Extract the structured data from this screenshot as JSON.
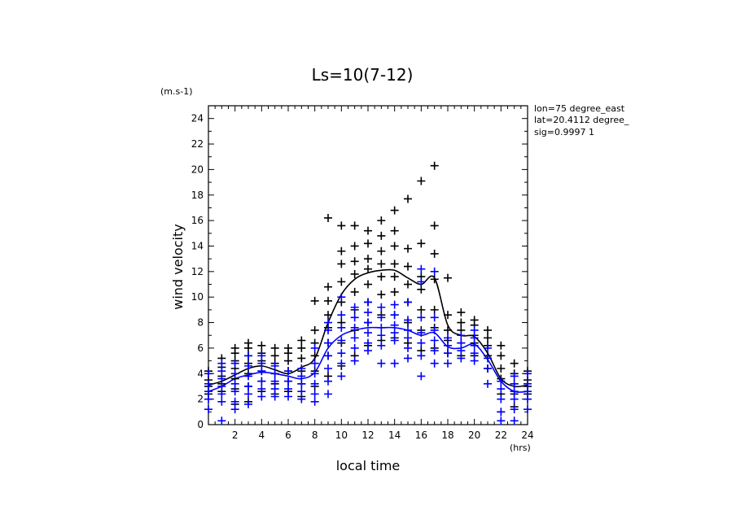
{
  "chart_data": {
    "type": "scatter",
    "title": "Ls=10(7-12)",
    "xlabel": "local time",
    "ylabel": "wind velocity",
    "x_unit": "(hrs)",
    "y_unit": "(m.s-1)",
    "xlim": [
      0,
      24
    ],
    "ylim": [
      0,
      25
    ],
    "x_ticks": [
      2,
      4,
      6,
      8,
      10,
      12,
      14,
      16,
      18,
      20,
      22,
      24
    ],
    "y_ticks": [
      0,
      2,
      4,
      6,
      8,
      10,
      12,
      14,
      16,
      18,
      20,
      22,
      24
    ],
    "grid": false,
    "annotations": [
      "lon=75 degree_east",
      "lat=20.4112 degree_",
      "sig=0.9997 1"
    ],
    "series": [
      {
        "color": "#000000",
        "marker": "+",
        "points": [
          [
            0,
            2.4
          ],
          [
            0,
            3.0
          ],
          [
            0,
            3.5
          ],
          [
            0,
            4.2
          ],
          [
            1,
            2.6
          ],
          [
            1,
            3.2
          ],
          [
            1,
            3.8
          ],
          [
            1,
            4.5
          ],
          [
            1,
            5.2
          ],
          [
            2,
            1.6
          ],
          [
            2,
            2.8
          ],
          [
            2,
            3.6
          ],
          [
            2,
            4.4
          ],
          [
            2,
            5.0
          ],
          [
            2,
            5.6
          ],
          [
            2,
            6.0
          ],
          [
            3,
            1.8
          ],
          [
            3,
            3.0
          ],
          [
            3,
            4.0
          ],
          [
            3,
            4.8
          ],
          [
            3,
            5.4
          ],
          [
            3,
            6.0
          ],
          [
            3,
            6.4
          ],
          [
            4,
            2.6
          ],
          [
            4,
            3.4
          ],
          [
            4,
            4.2
          ],
          [
            4,
            5.0
          ],
          [
            4,
            5.6
          ],
          [
            4,
            6.2
          ],
          [
            5,
            2.4
          ],
          [
            5,
            3.2
          ],
          [
            5,
            4.0
          ],
          [
            5,
            4.8
          ],
          [
            5,
            5.4
          ],
          [
            5,
            6.0
          ],
          [
            6,
            2.6
          ],
          [
            6,
            3.4
          ],
          [
            6,
            4.2
          ],
          [
            6,
            5.0
          ],
          [
            6,
            5.6
          ],
          [
            6,
            6.0
          ],
          [
            7,
            2.2
          ],
          [
            7,
            3.2
          ],
          [
            7,
            4.2
          ],
          [
            7,
            5.2
          ],
          [
            7,
            6.0
          ],
          [
            7,
            6.6
          ],
          [
            8,
            3.0
          ],
          [
            8,
            4.2
          ],
          [
            8,
            5.4
          ],
          [
            8,
            6.4
          ],
          [
            8,
            7.4
          ],
          [
            8,
            9.7
          ],
          [
            9,
            3.8
          ],
          [
            9,
            5.4
          ],
          [
            9,
            6.4
          ],
          [
            9,
            7.6
          ],
          [
            9,
            8.6
          ],
          [
            9,
            9.7
          ],
          [
            9,
            10.8
          ],
          [
            9,
            16.2
          ],
          [
            10,
            4.6
          ],
          [
            10,
            6.4
          ],
          [
            10,
            8.0
          ],
          [
            10,
            9.6
          ],
          [
            10,
            11.2
          ],
          [
            10,
            12.6
          ],
          [
            10,
            13.6
          ],
          [
            10,
            15.6
          ],
          [
            11,
            5.4
          ],
          [
            11,
            7.4
          ],
          [
            11,
            9.0
          ],
          [
            11,
            10.4
          ],
          [
            11,
            11.8
          ],
          [
            11,
            12.8
          ],
          [
            11,
            14.0
          ],
          [
            11,
            15.6
          ],
          [
            12,
            6.2
          ],
          [
            12,
            8.0
          ],
          [
            12,
            9.6
          ],
          [
            12,
            11.0
          ],
          [
            12,
            12.2
          ],
          [
            12,
            13.0
          ],
          [
            12,
            14.2
          ],
          [
            12,
            15.2
          ],
          [
            13,
            6.6
          ],
          [
            13,
            8.6
          ],
          [
            13,
            10.2
          ],
          [
            13,
            11.6
          ],
          [
            13,
            12.6
          ],
          [
            13,
            13.6
          ],
          [
            13,
            14.8
          ],
          [
            13,
            16.0
          ],
          [
            14,
            6.8
          ],
          [
            14,
            8.6
          ],
          [
            14,
            10.4
          ],
          [
            14,
            11.6
          ],
          [
            14,
            12.6
          ],
          [
            14,
            14.0
          ],
          [
            14,
            15.2
          ],
          [
            14,
            16.8
          ],
          [
            15,
            6.4
          ],
          [
            15,
            8.0
          ],
          [
            15,
            9.6
          ],
          [
            15,
            11.0
          ],
          [
            15,
            12.4
          ],
          [
            15,
            13.8
          ],
          [
            15,
            17.7
          ],
          [
            16,
            5.8
          ],
          [
            16,
            7.4
          ],
          [
            16,
            9.0
          ],
          [
            16,
            10.6
          ],
          [
            16,
            11.6
          ],
          [
            16,
            14.2
          ],
          [
            16,
            19.1
          ],
          [
            17,
            6.0
          ],
          [
            17,
            7.6
          ],
          [
            17,
            9.0
          ],
          [
            17,
            11.4
          ],
          [
            17,
            13.4
          ],
          [
            17,
            15.6
          ],
          [
            17,
            20.3
          ],
          [
            18,
            5.6
          ],
          [
            18,
            6.6
          ],
          [
            18,
            7.4
          ],
          [
            18,
            8.6
          ],
          [
            18,
            11.5
          ],
          [
            19,
            5.4
          ],
          [
            19,
            6.4
          ],
          [
            19,
            7.4
          ],
          [
            19,
            8.0
          ],
          [
            19,
            8.8
          ],
          [
            20,
            5.4
          ],
          [
            20,
            6.4
          ],
          [
            20,
            7.0
          ],
          [
            20,
            7.8
          ],
          [
            20,
            8.2
          ],
          [
            21,
            4.4
          ],
          [
            21,
            5.4
          ],
          [
            21,
            6.2
          ],
          [
            21,
            6.8
          ],
          [
            21,
            7.4
          ],
          [
            22,
            1.0
          ],
          [
            22,
            2.4
          ],
          [
            22,
            3.6
          ],
          [
            22,
            4.4
          ],
          [
            22,
            5.4
          ],
          [
            22,
            6.2
          ],
          [
            23,
            1.4
          ],
          [
            23,
            2.4
          ],
          [
            23,
            3.2
          ],
          [
            23,
            4.0
          ],
          [
            23,
            4.8
          ],
          [
            24,
            2.4
          ],
          [
            24,
            3.0
          ],
          [
            24,
            3.5
          ],
          [
            24,
            4.2
          ]
        ]
      },
      {
        "color": "#0000ff",
        "marker": "+",
        "points": [
          [
            0,
            1.2
          ],
          [
            0,
            2.0
          ],
          [
            0,
            2.6
          ],
          [
            0,
            3.2
          ],
          [
            0,
            4.0
          ],
          [
            1,
            0.3
          ],
          [
            1,
            1.8
          ],
          [
            1,
            2.4
          ],
          [
            1,
            3.0
          ],
          [
            1,
            3.6
          ],
          [
            1,
            4.2
          ],
          [
            1,
            4.8
          ],
          [
            2,
            1.2
          ],
          [
            2,
            1.8
          ],
          [
            2,
            2.6
          ],
          [
            2,
            3.2
          ],
          [
            2,
            4.0
          ],
          [
            2,
            4.8
          ],
          [
            3,
            1.6
          ],
          [
            3,
            2.4
          ],
          [
            3,
            3.0
          ],
          [
            3,
            3.8
          ],
          [
            3,
            4.6
          ],
          [
            3,
            5.4
          ],
          [
            4,
            2.2
          ],
          [
            4,
            2.8
          ],
          [
            4,
            3.4
          ],
          [
            4,
            4.2
          ],
          [
            4,
            4.8
          ],
          [
            4,
            5.4
          ],
          [
            5,
            2.2
          ],
          [
            5,
            2.8
          ],
          [
            5,
            3.4
          ],
          [
            5,
            4.0
          ],
          [
            5,
            4.6
          ],
          [
            6,
            2.2
          ],
          [
            6,
            2.8
          ],
          [
            6,
            3.4
          ],
          [
            6,
            4.2
          ],
          [
            7,
            2.0
          ],
          [
            7,
            2.6
          ],
          [
            7,
            3.2
          ],
          [
            7,
            3.8
          ],
          [
            7,
            4.4
          ],
          [
            8,
            1.8
          ],
          [
            8,
            2.4
          ],
          [
            8,
            3.2
          ],
          [
            8,
            4.0
          ],
          [
            8,
            4.8
          ],
          [
            8,
            6.0
          ],
          [
            9,
            2.4
          ],
          [
            9,
            3.4
          ],
          [
            9,
            4.4
          ],
          [
            9,
            5.4
          ],
          [
            9,
            6.4
          ],
          [
            9,
            7.4
          ],
          [
            9,
            8.0
          ],
          [
            10,
            3.8
          ],
          [
            10,
            4.8
          ],
          [
            10,
            5.6
          ],
          [
            10,
            6.6
          ],
          [
            10,
            7.6
          ],
          [
            10,
            8.6
          ],
          [
            10,
            10.0
          ],
          [
            11,
            5.0
          ],
          [
            11,
            6.0
          ],
          [
            11,
            6.8
          ],
          [
            11,
            7.6
          ],
          [
            11,
            8.4
          ],
          [
            11,
            9.2
          ],
          [
            12,
            5.8
          ],
          [
            12,
            6.4
          ],
          [
            12,
            7.2
          ],
          [
            12,
            8.0
          ],
          [
            12,
            8.8
          ],
          [
            12,
            9.6
          ],
          [
            13,
            4.8
          ],
          [
            13,
            6.2
          ],
          [
            13,
            7.0
          ],
          [
            13,
            7.6
          ],
          [
            13,
            8.4
          ],
          [
            13,
            9.2
          ],
          [
            14,
            4.8
          ],
          [
            14,
            6.6
          ],
          [
            14,
            7.2
          ],
          [
            14,
            7.8
          ],
          [
            14,
            8.6
          ],
          [
            14,
            9.4
          ],
          [
            15,
            5.2
          ],
          [
            15,
            6.0
          ],
          [
            15,
            6.8
          ],
          [
            15,
            7.4
          ],
          [
            15,
            8.2
          ],
          [
            15,
            9.6
          ],
          [
            16,
            3.8
          ],
          [
            16,
            5.4
          ],
          [
            16,
            6.4
          ],
          [
            16,
            7.2
          ],
          [
            16,
            8.4
          ],
          [
            16,
            11.2
          ],
          [
            16,
            12.2
          ],
          [
            17,
            4.8
          ],
          [
            17,
            5.8
          ],
          [
            17,
            6.6
          ],
          [
            17,
            7.4
          ],
          [
            17,
            8.4
          ],
          [
            17,
            12.0
          ],
          [
            18,
            4.8
          ],
          [
            18,
            5.6
          ],
          [
            18,
            6.2
          ],
          [
            18,
            6.8
          ],
          [
            19,
            5.2
          ],
          [
            19,
            5.8
          ],
          [
            19,
            6.4
          ],
          [
            19,
            7.0
          ],
          [
            20,
            5.0
          ],
          [
            20,
            5.6
          ],
          [
            20,
            6.2
          ],
          [
            20,
            6.8
          ],
          [
            20,
            7.4
          ],
          [
            21,
            3.2
          ],
          [
            21,
            4.4
          ],
          [
            21,
            5.2
          ],
          [
            21,
            6.0
          ],
          [
            22,
            0.3
          ],
          [
            22,
            1.0
          ],
          [
            22,
            2.0
          ],
          [
            22,
            2.8
          ],
          [
            22,
            3.4
          ],
          [
            23,
            0.3
          ],
          [
            23,
            1.2
          ],
          [
            23,
            2.0
          ],
          [
            23,
            2.6
          ],
          [
            23,
            3.2
          ],
          [
            23,
            3.8
          ],
          [
            24,
            1.2
          ],
          [
            24,
            2.0
          ],
          [
            24,
            2.6
          ],
          [
            24,
            3.2
          ],
          [
            24,
            4.0
          ]
        ]
      }
    ],
    "lines": [
      {
        "color": "#000000",
        "x": [
          0,
          1,
          2,
          3,
          4,
          5,
          6,
          7,
          8,
          9,
          10,
          11,
          12,
          13,
          14,
          15,
          16,
          17,
          18,
          19,
          20,
          21,
          22,
          23,
          24
        ],
        "y": [
          3.1,
          3.4,
          3.9,
          4.4,
          4.6,
          4.3,
          4.0,
          4.5,
          5.2,
          8.0,
          10.2,
          11.4,
          11.9,
          12.1,
          12.1,
          11.5,
          11.0,
          11.5,
          7.8,
          7.0,
          6.9,
          5.6,
          3.6,
          3.0,
          3.1
        ]
      },
      {
        "color": "#0000ff",
        "x": [
          0,
          1,
          2,
          3,
          4,
          5,
          6,
          7,
          8,
          9,
          10,
          11,
          12,
          13,
          14,
          15,
          16,
          17,
          18,
          19,
          20,
          21,
          22,
          23,
          24
        ],
        "y": [
          2.6,
          3.0,
          3.6,
          3.9,
          4.1,
          4.0,
          3.8,
          3.6,
          4.1,
          6.0,
          7.0,
          7.4,
          7.6,
          7.6,
          7.6,
          7.4,
          7.0,
          7.2,
          6.1,
          6.0,
          6.3,
          5.1,
          3.4,
          2.6,
          2.6
        ]
      }
    ]
  }
}
